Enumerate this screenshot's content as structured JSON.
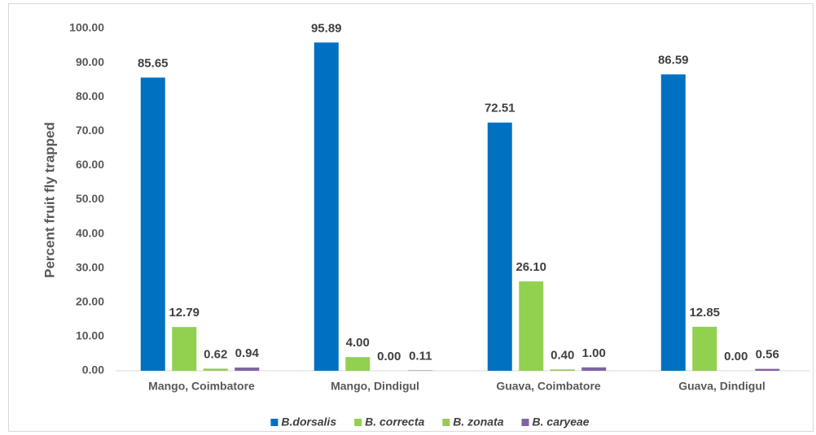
{
  "chart_data": {
    "type": "bar",
    "y_label": "Percent fruit fly trapped",
    "categories": [
      "Mango, Coimbatore",
      "Mango, Dindigul",
      "Guava, Coimbatore",
      "Guava, Dindigul"
    ],
    "series": [
      {
        "name": "B.dorsalis",
        "color": "#0070c0",
        "values": [
          85.65,
          95.89,
          72.51,
          86.59
        ],
        "value_labels": [
          "85.65",
          "95.89",
          "72.51",
          "86.59"
        ]
      },
      {
        "name": "B. correcta",
        "color": "#92d050",
        "values": [
          12.79,
          4,
          26.1,
          12.85
        ],
        "value_labels": [
          "12.79",
          "4.00",
          "26.10",
          "12.85"
        ]
      },
      {
        "name": "B. zonata",
        "color": "#9bc85a",
        "values": [
          0.62,
          0,
          0.4,
          0
        ],
        "value_labels": [
          "0.62",
          "0.00",
          "0.40",
          "0.00"
        ]
      },
      {
        "name": "B. caryeae",
        "color": "#8064a2",
        "values": [
          0.94,
          0.11,
          1,
          0.56
        ],
        "value_labels": [
          "0.94",
          "0.11",
          "1.00",
          "0.56"
        ]
      }
    ],
    "ylim": [
      0,
      100
    ],
    "yticks": [
      {
        "value": 0,
        "label": "0.00"
      },
      {
        "value": 10,
        "label": "10.00"
      },
      {
        "value": 20,
        "label": "20.00"
      },
      {
        "value": 30,
        "label": "30.00"
      },
      {
        "value": 40,
        "label": "40.00"
      },
      {
        "value": 50,
        "label": "50.00"
      },
      {
        "value": 60,
        "label": "60.00"
      },
      {
        "value": 70,
        "label": "70.00"
      },
      {
        "value": 80,
        "label": "80.00"
      },
      {
        "value": 90,
        "label": "90.00"
      },
      {
        "value": 100,
        "label": "100.00"
      }
    ],
    "grid": false,
    "legend": "bottom"
  }
}
